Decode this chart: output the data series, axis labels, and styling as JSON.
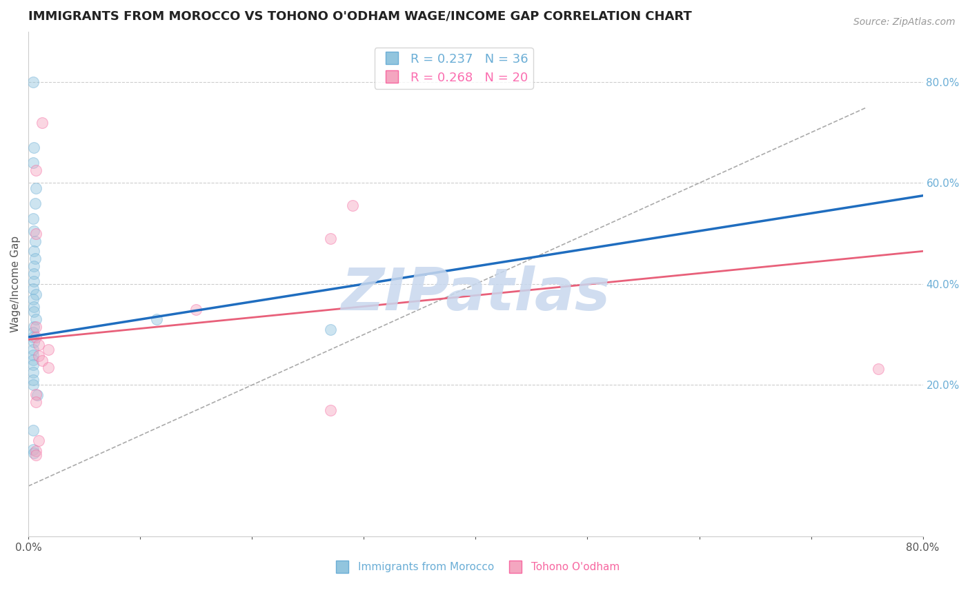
{
  "title": "IMMIGRANTS FROM MOROCCO VS TOHONO O'ODHAM WAGE/INCOME GAP CORRELATION CHART",
  "source": "Source: ZipAtlas.com",
  "ylabel": "Wage/Income Gap",
  "xlim": [
    0.0,
    0.8
  ],
  "ylim": [
    -0.1,
    0.9
  ],
  "right_yticks": [
    0.2,
    0.4,
    0.6,
    0.8
  ],
  "xtick_positions": [
    0.0,
    0.1,
    0.2,
    0.3,
    0.4,
    0.5,
    0.6,
    0.7,
    0.8
  ],
  "xtick_labels": [
    "0.0%",
    "",
    "",
    "",
    "",
    "",
    "",
    "",
    "80.0%"
  ],
  "legend_entries": [
    {
      "label": "R = 0.237   N = 36",
      "color": "#6baed6"
    },
    {
      "label": "R = 0.268   N = 20",
      "color": "#fb6eb0"
    }
  ],
  "blue_scatter": [
    [
      0.004,
      0.8
    ],
    [
      0.005,
      0.67
    ],
    [
      0.004,
      0.64
    ],
    [
      0.007,
      0.59
    ],
    [
      0.006,
      0.56
    ],
    [
      0.004,
      0.53
    ],
    [
      0.005,
      0.505
    ],
    [
      0.006,
      0.485
    ],
    [
      0.005,
      0.465
    ],
    [
      0.006,
      0.45
    ],
    [
      0.005,
      0.435
    ],
    [
      0.005,
      0.42
    ],
    [
      0.005,
      0.405
    ],
    [
      0.004,
      0.39
    ],
    [
      0.007,
      0.38
    ],
    [
      0.004,
      0.37
    ],
    [
      0.005,
      0.355
    ],
    [
      0.005,
      0.345
    ],
    [
      0.007,
      0.33
    ],
    [
      0.005,
      0.315
    ],
    [
      0.004,
      0.305
    ],
    [
      0.004,
      0.295
    ],
    [
      0.005,
      0.285
    ],
    [
      0.004,
      0.27
    ],
    [
      0.004,
      0.26
    ],
    [
      0.004,
      0.25
    ],
    [
      0.004,
      0.24
    ],
    [
      0.004,
      0.225
    ],
    [
      0.004,
      0.21
    ],
    [
      0.004,
      0.2
    ],
    [
      0.008,
      0.18
    ],
    [
      0.004,
      0.11
    ],
    [
      0.004,
      0.072
    ],
    [
      0.005,
      0.065
    ],
    [
      0.115,
      0.33
    ],
    [
      0.27,
      0.31
    ]
  ],
  "pink_scatter": [
    [
      0.012,
      0.72
    ],
    [
      0.007,
      0.625
    ],
    [
      0.29,
      0.555
    ],
    [
      0.007,
      0.5
    ],
    [
      0.27,
      0.49
    ],
    [
      0.15,
      0.35
    ],
    [
      0.007,
      0.315
    ],
    [
      0.007,
      0.295
    ],
    [
      0.009,
      0.28
    ],
    [
      0.018,
      0.27
    ],
    [
      0.009,
      0.258
    ],
    [
      0.012,
      0.248
    ],
    [
      0.018,
      0.235
    ],
    [
      0.007,
      0.182
    ],
    [
      0.007,
      0.167
    ],
    [
      0.27,
      0.15
    ],
    [
      0.009,
      0.09
    ],
    [
      0.007,
      0.07
    ],
    [
      0.007,
      0.062
    ],
    [
      0.76,
      0.232
    ]
  ],
  "blue_line": {
    "x": [
      0.0,
      0.8
    ],
    "y": [
      0.295,
      0.575
    ]
  },
  "pink_line": {
    "x": [
      0.0,
      0.8
    ],
    "y": [
      0.29,
      0.465
    ]
  },
  "diag_line": {
    "x": [
      0.0,
      0.75
    ],
    "y": [
      0.0,
      0.75
    ]
  },
  "watermark_text": "ZIPatlas",
  "watermark_color": "#c8d8ee",
  "blue_color": "#92c5de",
  "pink_color": "#f4a6c0",
  "blue_edge_color": "#6baed6",
  "pink_edge_color": "#f768a1",
  "blue_line_color": "#1f6dbf",
  "pink_line_color": "#e8607a",
  "scatter_size": 130,
  "scatter_alpha": 0.45,
  "grid_color": "#cccccc",
  "background_color": "#ffffff",
  "title_fontsize": 13,
  "axis_label_fontsize": 11,
  "tick_fontsize": 11,
  "legend_fontsize": 13,
  "bottom_legend_labels": [
    "Immigrants from Morocco",
    "Tohono O'odham"
  ]
}
